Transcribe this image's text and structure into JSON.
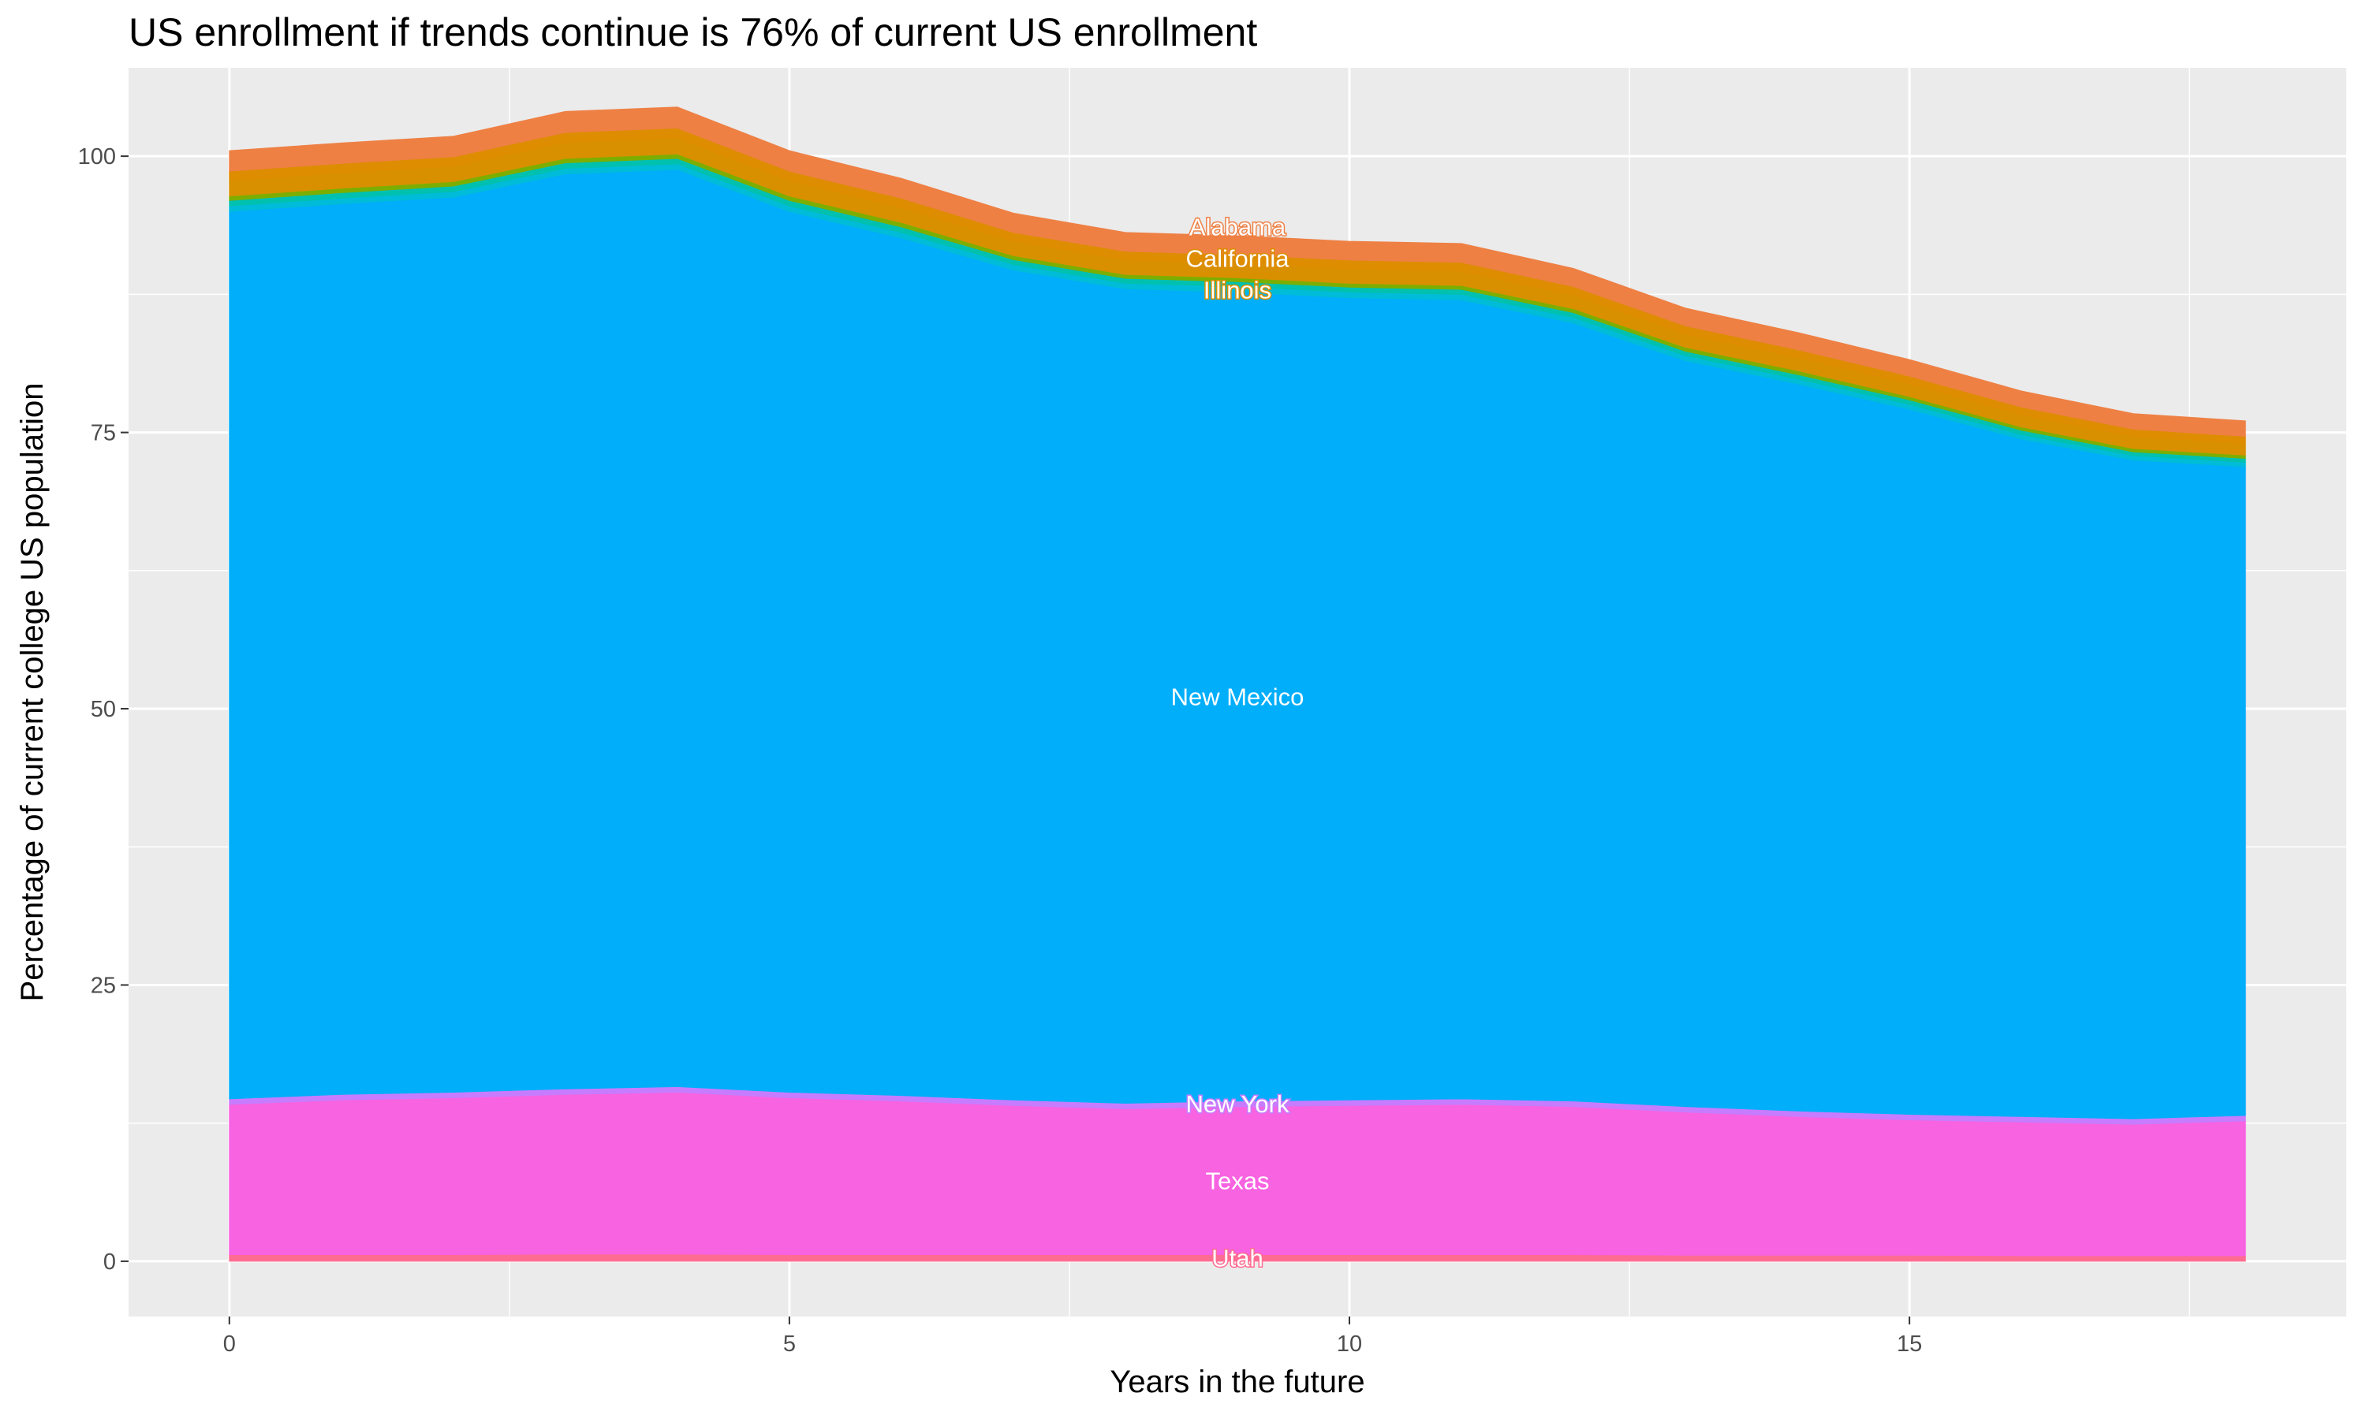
{
  "chart_data": {
    "type": "area",
    "stacked": true,
    "title": "US enrollment if trends continue is 76% of current US enrollment",
    "xlabel": "Years in the future",
    "ylabel": "Percentage of current college US population",
    "xlim": [
      -0.9,
      18.9
    ],
    "ylim": [
      -5,
      108
    ],
    "x_ticks": [
      0,
      5,
      10,
      15
    ],
    "y_ticks": [
      0,
      25,
      50,
      75,
      100
    ],
    "grid": true,
    "legend": "none",
    "x": [
      0,
      1,
      2,
      3,
      4,
      5,
      6,
      7,
      8,
      9,
      10,
      11,
      12,
      13,
      14,
      15,
      16,
      17,
      18
    ],
    "series": [
      {
        "name": "Utah",
        "color": "#FF6C91",
        "values": [
          0.6,
          0.6,
          0.6,
          0.65,
          0.65,
          0.6,
          0.6,
          0.6,
          0.6,
          0.6,
          0.6,
          0.6,
          0.6,
          0.55,
          0.55,
          0.55,
          0.5,
          0.5,
          0.5
        ]
      },
      {
        "name": "Texas",
        "color": "#F763E0",
        "values": [
          13.6,
          14.0,
          14.2,
          14.45,
          14.65,
          14.2,
          13.9,
          13.5,
          13.2,
          13.4,
          13.5,
          13.6,
          13.4,
          12.95,
          12.55,
          12.25,
          12.1,
          11.9,
          12.2
        ]
      },
      {
        "name": "New York",
        "color": "#C77CFF",
        "values": [
          0.5,
          0.5,
          0.5,
          0.5,
          0.5,
          0.5,
          0.5,
          0.5,
          0.5,
          0.5,
          0.5,
          0.5,
          0.5,
          0.5,
          0.5,
          0.5,
          0.5,
          0.5,
          0.5
        ]
      },
      {
        "name": "New Mexico",
        "color": "#00AEFA",
        "values": [
          80.3,
          80.6,
          81.0,
          82.8,
          83.0,
          79.7,
          77.6,
          75.1,
          73.7,
          73.2,
          72.6,
          72.3,
          70.4,
          67.5,
          65.8,
          63.8,
          61.3,
          59.6,
          58.7
        ]
      },
      {
        "name": "",
        "color": "#00BCD8",
        "values": [
          0.5,
          0.5,
          0.5,
          0.5,
          0.5,
          0.5,
          0.5,
          0.5,
          0.5,
          0.5,
          0.5,
          0.5,
          0.5,
          0.45,
          0.45,
          0.45,
          0.4,
          0.4,
          0.4
        ]
      },
      {
        "name": "",
        "color": "#00C0AF",
        "values": [
          0.5,
          0.5,
          0.5,
          0.5,
          0.5,
          0.5,
          0.5,
          0.45,
          0.45,
          0.45,
          0.45,
          0.45,
          0.45,
          0.4,
          0.4,
          0.4,
          0.4,
          0.35,
          0.35
        ]
      },
      {
        "name": "",
        "color": "#7CAE00",
        "values": [
          0.4,
          0.4,
          0.4,
          0.4,
          0.4,
          0.4,
          0.4,
          0.35,
          0.35,
          0.35,
          0.35,
          0.35,
          0.35,
          0.35,
          0.35,
          0.3,
          0.3,
          0.3,
          0.3
        ]
      },
      {
        "name": "Illinois",
        "color": "#D89000",
        "values": [
          1.4,
          1.4,
          1.4,
          1.45,
          1.45,
          1.4,
          1.35,
          1.3,
          1.3,
          1.3,
          1.3,
          1.3,
          1.25,
          1.2,
          1.2,
          1.15,
          1.1,
          1.1,
          1.05
        ]
      },
      {
        "name": "California",
        "color": "#DE8C00",
        "values": [
          0.85,
          0.85,
          0.85,
          0.9,
          0.9,
          0.85,
          0.85,
          0.8,
          0.8,
          0.8,
          0.8,
          0.8,
          0.75,
          0.75,
          0.7,
          0.7,
          0.7,
          0.65,
          0.65
        ]
      },
      {
        "name": "Alabama",
        "color": "#EE8044",
        "values": [
          1.85,
          1.85,
          1.85,
          1.9,
          1.9,
          1.85,
          1.8,
          1.75,
          1.7,
          1.7,
          1.7,
          1.7,
          1.65,
          1.6,
          1.55,
          1.5,
          1.45,
          1.4,
          1.4
        ]
      }
    ],
    "label_x": 9
  }
}
